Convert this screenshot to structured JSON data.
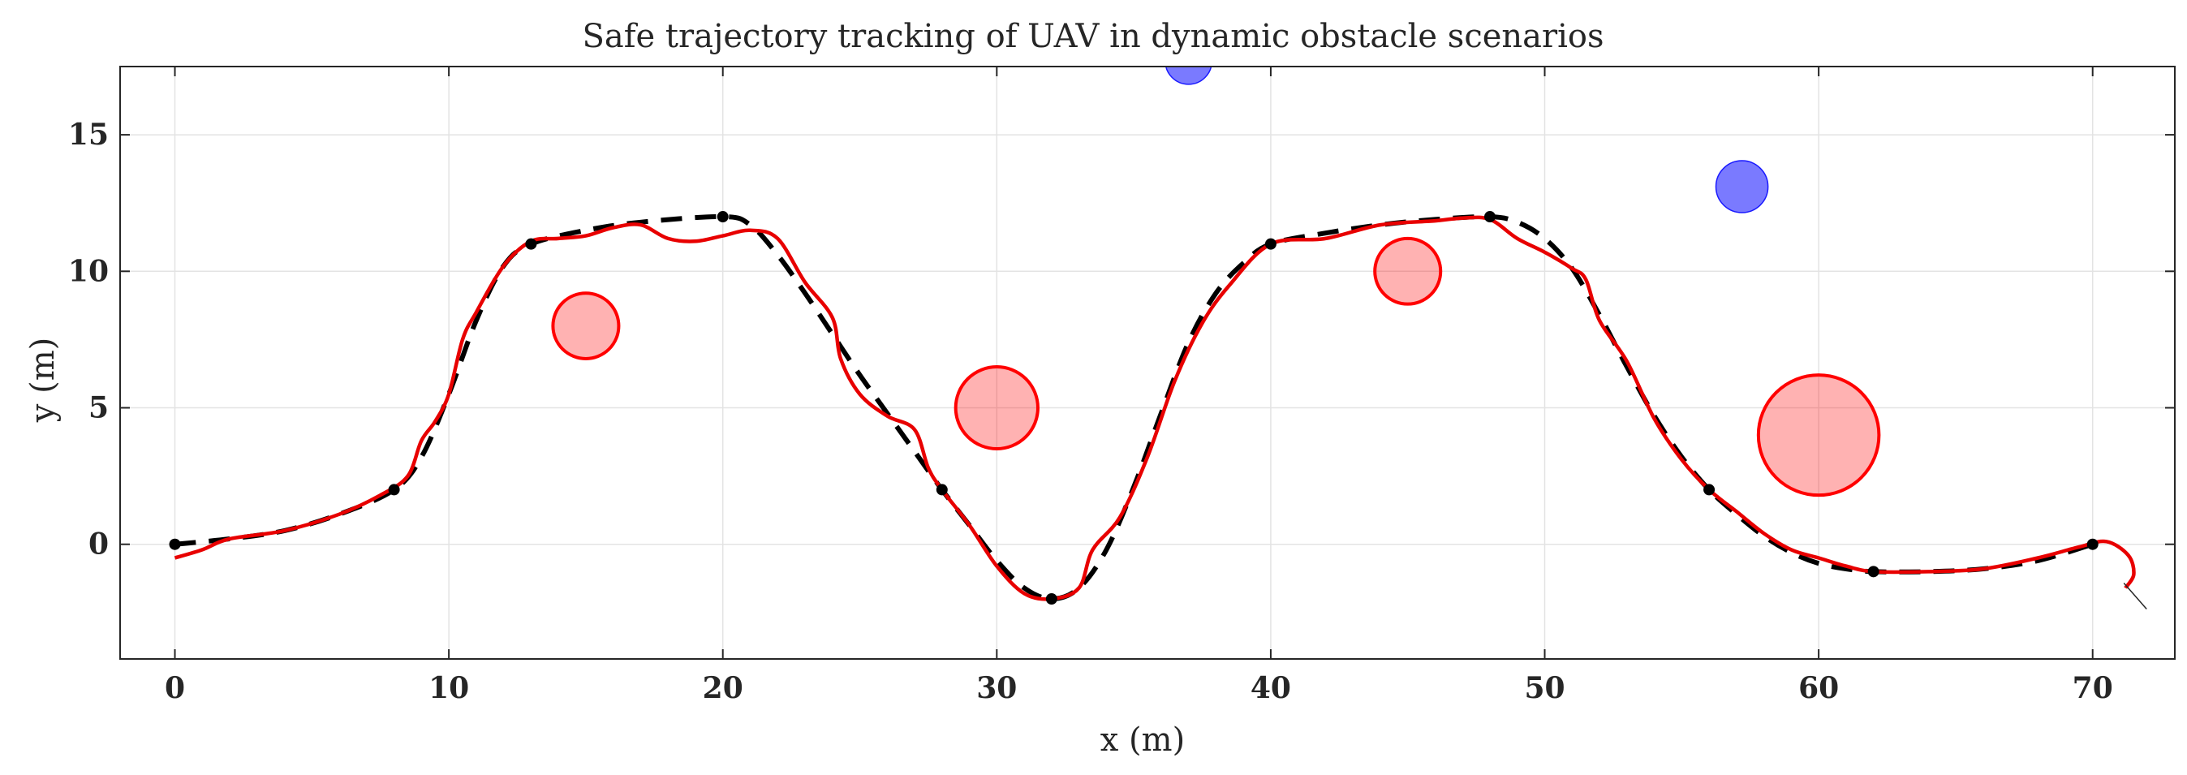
{
  "chart_data": {
    "type": "line",
    "title": "Safe trajectory tracking of UAV in dynamic obstacle scenarios",
    "xlabel": "x (m)",
    "ylabel": "y (m)",
    "xlim": [
      -2,
      73
    ],
    "ylim": [
      -4.2,
      17.5
    ],
    "xticks": [
      "0",
      "10",
      "20",
      "30",
      "40",
      "50",
      "60",
      "70"
    ],
    "yticks": [
      "0",
      "5",
      "10",
      "15"
    ],
    "grid": true,
    "legend": "none",
    "waypoints": {
      "x": [
        0,
        8,
        13,
        20,
        28,
        32,
        40,
        48,
        56,
        62,
        70
      ],
      "y": [
        0,
        2,
        11,
        12,
        2,
        -2,
        11,
        12,
        2,
        -1,
        0
      ],
      "color": "#000000"
    },
    "series": [
      {
        "style": "dashed",
        "color": "#000000",
        "x": [
          0,
          2,
          4,
          6,
          8,
          9,
          10,
          11,
          12,
          13,
          15,
          17,
          20,
          21,
          22,
          23,
          24,
          25,
          26,
          27,
          28,
          29,
          30,
          31,
          32,
          33,
          34,
          35,
          36,
          37,
          38,
          39,
          40,
          42,
          44,
          46,
          48,
          49,
          50,
          51,
          52,
          53,
          54,
          55,
          56,
          57,
          58,
          59,
          60,
          61,
          62,
          64,
          66,
          68,
          70
        ],
        "y": [
          0,
          0.2,
          0.5,
          1.1,
          2,
          3.2,
          5.5,
          8.2,
          10.2,
          11,
          11.5,
          11.8,
          12,
          11.7,
          10.6,
          9.2,
          7.7,
          6.2,
          4.8,
          3.4,
          2,
          0.7,
          -0.6,
          -1.6,
          -2,
          -1.6,
          -0.2,
          2.1,
          4.8,
          7.4,
          9.2,
          10.3,
          11,
          11.4,
          11.7,
          11.9,
          12,
          11.8,
          11.2,
          10.1,
          8.4,
          6.5,
          4.7,
          3.2,
          2,
          1.1,
          0.3,
          -0.3,
          -0.7,
          -0.9,
          -1,
          -1,
          -0.9,
          -0.6,
          0
        ]
      },
      {
        "style": "solid",
        "color": "#e80000",
        "x": [
          0,
          1,
          2,
          4,
          6,
          7.5,
          8.5,
          9,
          9.5,
          10,
          10.5,
          11,
          12,
          13,
          14,
          15,
          16,
          17,
          18,
          19,
          20,
          21,
          22,
          23,
          24,
          24.3,
          25,
          26,
          27,
          27.5,
          28,
          29,
          30,
          31,
          32,
          33,
          33.5,
          34.5,
          35.5,
          36.5,
          37.5,
          38.5,
          40,
          42,
          44,
          46,
          47,
          48,
          49,
          50,
          51,
          51.5,
          52,
          53,
          54,
          55,
          56,
          57,
          58,
          59,
          60,
          61,
          62,
          64,
          66,
          68,
          69.5,
          70.5,
          71.3,
          71.5,
          71.2
        ],
        "y": [
          -0.5,
          -0.2,
          0.2,
          0.5,
          1.1,
          1.8,
          2.5,
          3.8,
          4.5,
          5.5,
          7.5,
          8.5,
          10.2,
          11.1,
          11.2,
          11.3,
          11.6,
          11.7,
          11.2,
          11.1,
          11.3,
          11.5,
          11.2,
          9.6,
          8.3,
          6.8,
          5.5,
          4.7,
          4.2,
          2.8,
          2,
          0.7,
          -0.8,
          -1.8,
          -2,
          -1.6,
          -0.2,
          1,
          3.2,
          6,
          8.1,
          9.5,
          11,
          11.2,
          11.7,
          11.85,
          11.95,
          11.9,
          11.2,
          10.7,
          10.1,
          9.7,
          8.2,
          6.7,
          4.6,
          3.1,
          2,
          1.2,
          0.4,
          -0.2,
          -0.5,
          -0.8,
          -1,
          -1,
          -0.9,
          -0.5,
          -0.1,
          0.1,
          -0.4,
          -1.1,
          -1.6
        ]
      }
    ],
    "obstacles": [
      {
        "x": 15,
        "y": 8,
        "r": 1.2,
        "color": "#ff0000"
      },
      {
        "x": 30,
        "y": 5,
        "r": 1.5,
        "color": "#ff0000"
      },
      {
        "x": 45,
        "y": 10,
        "r": 1.2,
        "color": "#ff0000"
      },
      {
        "x": 60,
        "y": 4,
        "r": 2.2,
        "color": "#ff0000"
      }
    ],
    "dynamic_obstacles": [
      {
        "x": 37,
        "y": 17.7,
        "r": 0.85,
        "color": "#4d4dff"
      },
      {
        "x": 57.2,
        "y": 13.1,
        "r": 0.95,
        "color": "#4d4dff"
      }
    ]
  }
}
